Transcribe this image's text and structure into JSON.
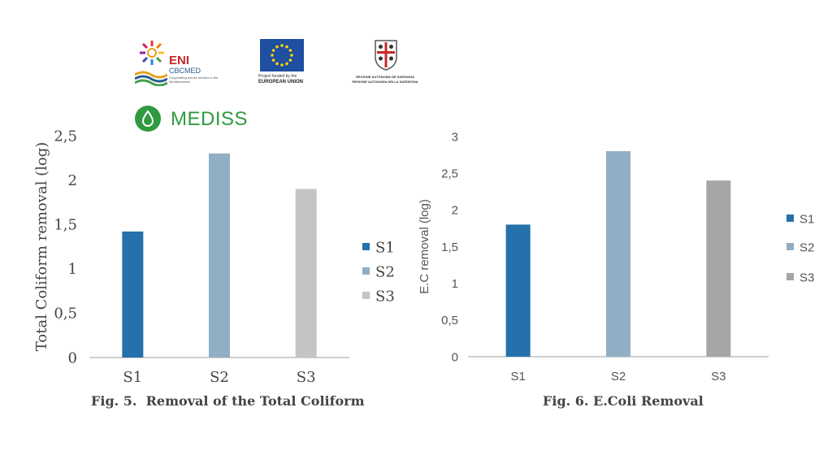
{
  "header": {
    "eni_title": "ENI",
    "eni_sub": "CBCMED",
    "eni_tag": "Cooperating across borders in the Mediterranean",
    "eu_caption_1": "Project funded by the",
    "eu_caption_2": "EUROPEAN UNION",
    "sardegna_1": "REGIONE AUTÒNOMA DE SARDIGNA",
    "sardegna_2": "REGIONE AUTONOMA DELLA SARDEGNA",
    "mediss": "MEDISS"
  },
  "colors": {
    "s1": "#2471ab",
    "s2": "#90afc5",
    "s3_left": "#c4c4c4",
    "s3_right": "#a6a6a6",
    "mediss": "#2f9a3f",
    "axis": "#bfbfbf"
  },
  "chart_data": [
    {
      "type": "bar",
      "title": "Fig. 5.  Removal of the Total Coliform",
      "categories": [
        "S1",
        "S2",
        "S3"
      ],
      "values": [
        1.42,
        2.3,
        1.9
      ],
      "ylabel": "Total Coliform removal (log)",
      "xlabel": "",
      "ylim": [
        0,
        2.5
      ],
      "yticks": [
        0,
        0.5,
        1,
        1.5,
        2,
        2.5
      ],
      "ytick_labels": [
        "0",
        "0,5",
        "1",
        "1,5",
        "2",
        "2,5"
      ],
      "legend": [
        "S1",
        "S2",
        "S3"
      ],
      "legend_position": "right"
    },
    {
      "type": "bar",
      "title": "Fig. 6. E.Coli Removal",
      "categories": [
        "S1",
        "S2",
        "S3"
      ],
      "values": [
        1.8,
        2.8,
        2.4
      ],
      "ylabel": "E.C removal (log)",
      "xlabel": "",
      "ylim": [
        0,
        3
      ],
      "yticks": [
        0,
        0.5,
        1,
        1.5,
        2,
        2.5,
        3
      ],
      "ytick_labels": [
        "0",
        "0,5",
        "1",
        "1,5",
        "2",
        "2,5",
        "3"
      ],
      "legend": [
        "S1",
        "S2",
        "S3"
      ],
      "legend_position": "right"
    }
  ]
}
